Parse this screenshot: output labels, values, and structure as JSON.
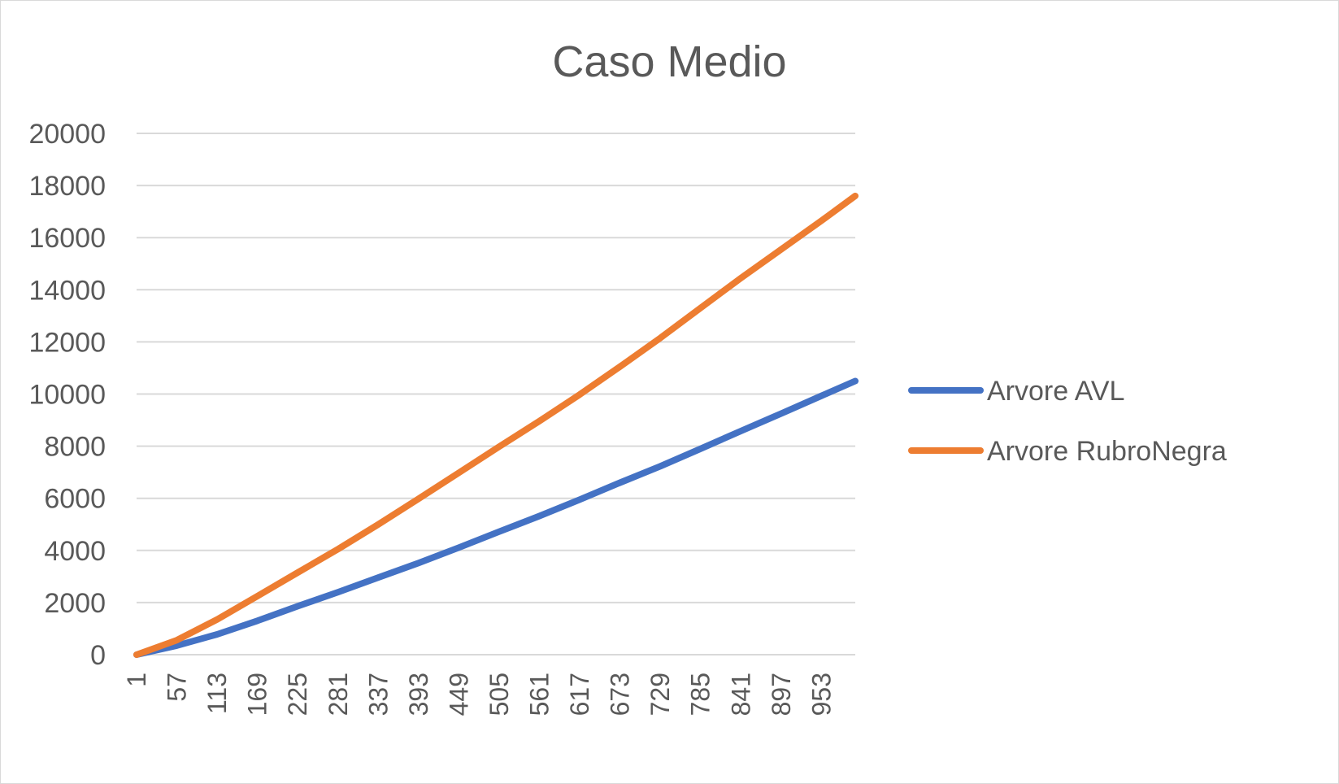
{
  "chart_data": {
    "type": "line",
    "title": "Caso Medio",
    "xlabel": "",
    "ylabel": "",
    "ylim": [
      0,
      20000
    ],
    "y_ticks": [
      "0",
      "2000",
      "4000",
      "6000",
      "8000",
      "10000",
      "12000",
      "14000",
      "16000",
      "18000",
      "20000"
    ],
    "x_tick_labels": [
      "1",
      "57",
      "113",
      "169",
      "225",
      "281",
      "337",
      "393",
      "449",
      "505",
      "561",
      "617",
      "673",
      "729",
      "785",
      "841",
      "897",
      "953"
    ],
    "x_range": [
      1,
      1000
    ],
    "grid": true,
    "legend_position": "right",
    "x": [
      1,
      57,
      113,
      169,
      225,
      281,
      337,
      393,
      449,
      505,
      561,
      617,
      673,
      729,
      785,
      841,
      897,
      953,
      1000
    ],
    "series": [
      {
        "name": "Arvore AVL",
        "color": "#4472C4",
        "values": [
          0,
          350,
          780,
          1300,
          1860,
          2400,
          2960,
          3520,
          4110,
          4720,
          5320,
          5950,
          6600,
          7230,
          7900,
          8580,
          9250,
          9930,
          10500
        ]
      },
      {
        "name": "Arvore RubroNegra",
        "color": "#ED7D31",
        "values": [
          0,
          560,
          1350,
          2250,
          3150,
          4050,
          5000,
          5980,
          6980,
          7980,
          8960,
          9980,
          11050,
          12150,
          13300,
          14450,
          15550,
          16650,
          17600
        ]
      }
    ]
  }
}
